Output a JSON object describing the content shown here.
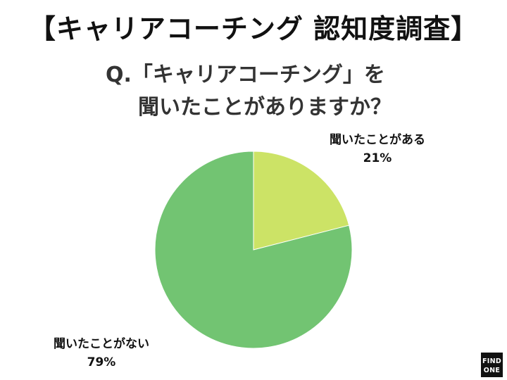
{
  "title": "【キャリアコーチング 認知度調査】",
  "question": {
    "line1": "Q.「キャリアコーチング」を",
    "line2": "聞いたことがありますか？"
  },
  "logo": {
    "line1": "FIND",
    "line2": "ONE"
  },
  "colors": {
    "heard": "#cce366",
    "not_heard": "#72c472",
    "text": "#111111"
  },
  "chart_data": {
    "type": "pie",
    "title": "",
    "slices": [
      {
        "label": "聞いたことがある",
        "value": 21,
        "display": "21%"
      },
      {
        "label": "聞いたことがない",
        "value": 79,
        "display": "79%"
      }
    ]
  }
}
